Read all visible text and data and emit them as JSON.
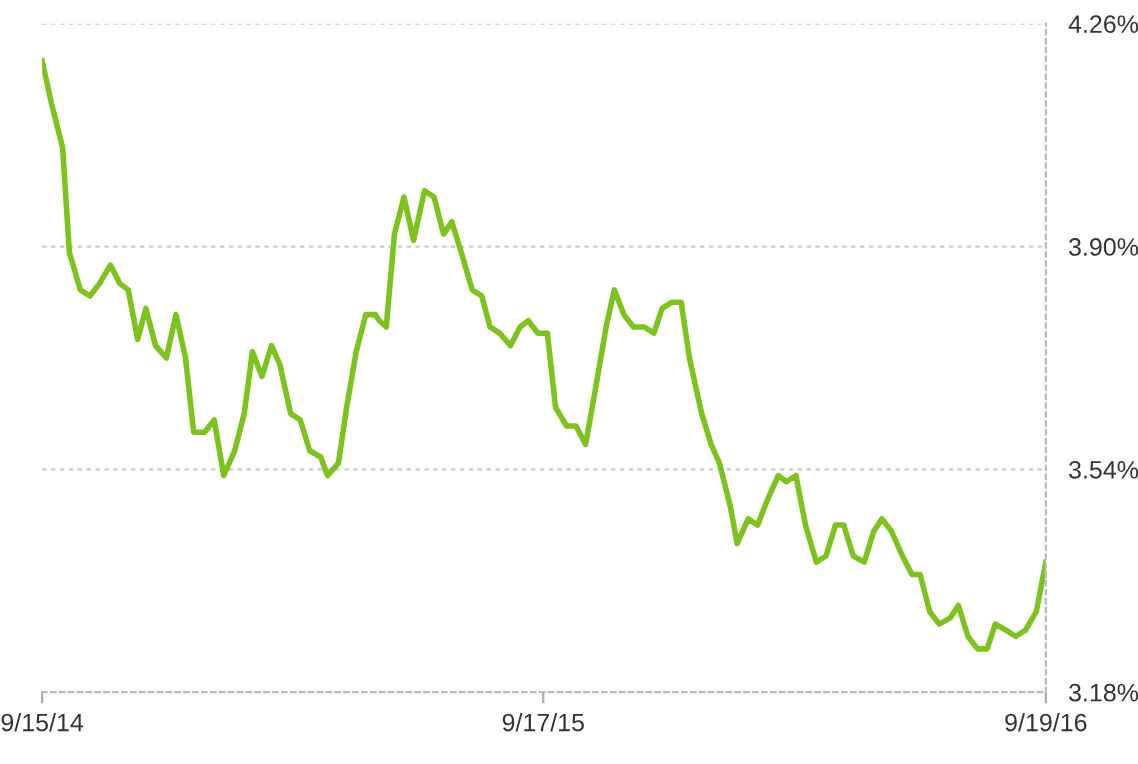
{
  "chart_data": {
    "type": "line",
    "x": [
      "2014-09-15",
      "2014-09-22",
      "2014-09-30",
      "2014-10-05",
      "2014-10-13",
      "2014-10-20",
      "2014-10-27",
      "2014-11-04",
      "2014-11-11",
      "2014-11-17",
      "2014-11-24",
      "2014-11-30",
      "2014-12-07",
      "2014-12-15",
      "2014-12-22",
      "2014-12-29",
      "2015-01-04",
      "2015-01-12",
      "2015-01-19",
      "2015-01-26",
      "2015-02-03",
      "2015-02-10",
      "2015-02-16",
      "2015-02-23",
      "2015-03-02",
      "2015-03-08",
      "2015-03-16",
      "2015-03-23",
      "2015-03-30",
      "2015-04-07",
      "2015-04-12",
      "2015-04-20",
      "2015-04-26",
      "2015-05-03",
      "2015-05-10",
      "2015-05-17",
      "2015-05-20",
      "2015-05-25",
      "2015-05-31",
      "2015-06-07",
      "2015-06-14",
      "2015-06-22",
      "2015-06-29",
      "2015-07-06",
      "2015-07-12",
      "2015-07-19",
      "2015-07-27",
      "2015-08-03",
      "2015-08-09",
      "2015-08-16",
      "2015-08-24",
      "2015-08-31",
      "2015-09-06",
      "2015-09-13",
      "2015-09-20",
      "2015-09-26",
      "2015-10-04",
      "2015-10-11",
      "2015-10-18",
      "2015-10-26",
      "2015-11-02",
      "2015-11-08",
      "2015-11-15",
      "2015-11-22",
      "2015-11-30",
      "2015-12-07",
      "2015-12-13",
      "2015-12-20",
      "2015-12-27",
      "2016-01-02",
      "2016-01-11",
      "2016-01-18",
      "2016-01-24",
      "2016-02-01",
      "2016-02-06",
      "2016-02-14",
      "2016-02-21",
      "2016-02-28",
      "2016-03-07",
      "2016-03-13",
      "2016-03-20",
      "2016-03-27",
      "2016-04-04",
      "2016-04-11",
      "2016-04-18",
      "2016-04-24",
      "2016-05-01",
      "2016-05-09",
      "2016-05-16",
      "2016-05-22",
      "2016-05-29",
      "2016-06-06",
      "2016-06-13",
      "2016-06-19",
      "2016-06-26",
      "2016-07-03",
      "2016-07-11",
      "2016-07-17",
      "2016-07-24",
      "2016-07-31",
      "2016-08-07",
      "2016-08-13",
      "2016-08-21",
      "2016-08-28",
      "2016-09-04",
      "2016-09-12",
      "2016-09-19"
    ],
    "series": [
      {
        "color": "#7dc21e",
        "values": [
          4.2,
          4.13,
          4.06,
          3.89,
          3.83,
          3.82,
          3.84,
          3.87,
          3.84,
          3.83,
          3.75,
          3.8,
          3.74,
          3.72,
          3.79,
          3.72,
          3.6,
          3.6,
          3.62,
          3.53,
          3.57,
          3.63,
          3.73,
          3.69,
          3.74,
          3.71,
          3.63,
          3.62,
          3.57,
          3.56,
          3.53,
          3.55,
          3.64,
          3.73,
          3.79,
          3.79,
          3.78,
          3.77,
          3.92,
          3.98,
          3.91,
          3.99,
          3.98,
          3.92,
          3.94,
          3.89,
          3.83,
          3.82,
          3.77,
          3.76,
          3.74,
          3.77,
          3.78,
          3.76,
          3.76,
          3.64,
          3.61,
          3.61,
          3.58,
          3.68,
          3.77,
          3.83,
          3.79,
          3.77,
          3.77,
          3.76,
          3.8,
          3.81,
          3.81,
          3.72,
          3.63,
          3.58,
          3.55,
          3.48,
          3.42,
          3.46,
          3.45,
          3.49,
          3.53,
          3.52,
          3.53,
          3.45,
          3.39,
          3.4,
          3.45,
          3.45,
          3.4,
          3.39,
          3.44,
          3.46,
          3.44,
          3.4,
          3.37,
          3.37,
          3.31,
          3.29,
          3.3,
          3.32,
          3.27,
          3.25,
          3.25,
          3.29,
          3.28,
          3.27,
          3.28,
          3.31,
          3.39
        ]
      }
    ],
    "xlim": [
      "2014-09-15",
      "2016-09-19"
    ],
    "xticks": [
      {
        "value": "2014-09-15",
        "label": "9/15/14"
      },
      {
        "value": "2015-09-17",
        "label": "9/17/15"
      },
      {
        "value": "2016-09-19",
        "label": "9/19/16"
      }
    ],
    "ylim": [
      3.18,
      4.26
    ],
    "yticks": [
      {
        "value": 3.18,
        "label": "3.18%"
      },
      {
        "value": 3.54,
        "label": "3.54%"
      },
      {
        "value": 3.9,
        "label": "3.90%"
      },
      {
        "value": 4.26,
        "label": "4.26%"
      }
    ],
    "grid": "y",
    "marker": "none",
    "line_style": "solid",
    "legend": false
  }
}
